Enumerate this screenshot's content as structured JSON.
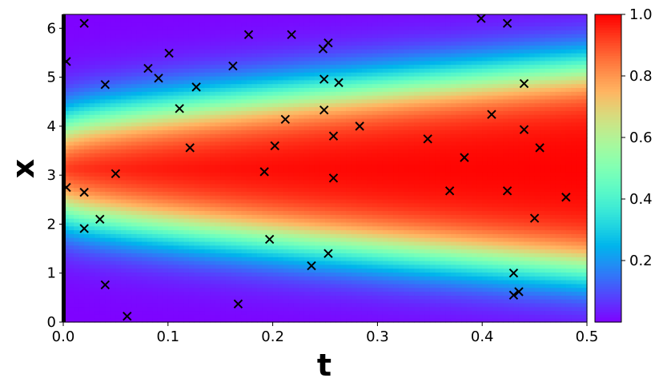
{
  "chart_data": {
    "type": "heatmap",
    "title": "",
    "xlabel": "t",
    "ylabel": "x",
    "xlim": [
      0.0,
      0.5
    ],
    "ylim": [
      0,
      6.283
    ],
    "x_ticks": [
      "0.0",
      "0.1",
      "0.2",
      "0.3",
      "0.4",
      "0.5"
    ],
    "x_tick_values": [
      0.0,
      0.1,
      0.2,
      0.3,
      0.4,
      0.5
    ],
    "y_ticks": [
      "0",
      "1",
      "2",
      "3",
      "4",
      "5",
      "6"
    ],
    "y_tick_values": [
      0,
      1,
      2,
      3,
      4,
      5,
      6
    ],
    "colormap": "rainbow",
    "colorbar": {
      "range": [
        0.0,
        1.0
      ],
      "ticks": [
        "0.2",
        "0.4",
        "0.6",
        "0.8",
        "1.0"
      ],
      "tick_values": [
        0.2,
        0.4,
        0.6,
        0.8,
        1.0
      ]
    },
    "field": {
      "description_free": true,
      "center": 3.141,
      "initial_halfwidth": 0.83,
      "growth_per_t": 1.26,
      "growth_sqrt": 2.4,
      "edge_width": 0.35
    },
    "grid": false,
    "markers": {
      "style": "x",
      "color": "#000000",
      "points": [
        [
          0.003,
          5.32
        ],
        [
          0.02,
          6.1
        ],
        [
          0.04,
          4.85
        ],
        [
          0.081,
          5.18
        ],
        [
          0.091,
          4.98
        ],
        [
          0.101,
          5.49
        ],
        [
          0.111,
          4.36
        ],
        [
          0.127,
          4.8
        ],
        [
          0.162,
          5.23
        ],
        [
          0.177,
          5.87
        ],
        [
          0.218,
          5.87
        ],
        [
          0.248,
          5.58
        ],
        [
          0.253,
          5.7
        ],
        [
          0.249,
          4.96
        ],
        [
          0.263,
          4.89
        ],
        [
          0.249,
          4.33
        ],
        [
          0.212,
          4.14
        ],
        [
          0.283,
          4.0
        ],
        [
          0.258,
          3.8
        ],
        [
          0.202,
          3.6
        ],
        [
          0.121,
          3.56
        ],
        [
          0.05,
          3.03
        ],
        [
          0.192,
          3.07
        ],
        [
          0.258,
          2.94
        ],
        [
          0.003,
          2.75
        ],
        [
          0.02,
          2.65
        ],
        [
          0.035,
          2.1
        ],
        [
          0.02,
          1.91
        ],
        [
          0.197,
          1.69
        ],
        [
          0.237,
          1.15
        ],
        [
          0.253,
          1.4
        ],
        [
          0.04,
          0.76
        ],
        [
          0.061,
          0.12
        ],
        [
          0.167,
          0.37
        ],
        [
          0.399,
          6.2
        ],
        [
          0.424,
          6.1
        ],
        [
          0.44,
          4.87
        ],
        [
          0.409,
          4.24
        ],
        [
          0.44,
          3.93
        ],
        [
          0.348,
          3.74
        ],
        [
          0.455,
          3.56
        ],
        [
          0.383,
          3.36
        ],
        [
          0.369,
          2.68
        ],
        [
          0.424,
          2.68
        ],
        [
          0.48,
          2.55
        ],
        [
          0.45,
          2.12
        ],
        [
          0.43,
          1.0
        ],
        [
          0.435,
          0.62
        ],
        [
          0.43,
          0.55
        ]
      ]
    }
  }
}
